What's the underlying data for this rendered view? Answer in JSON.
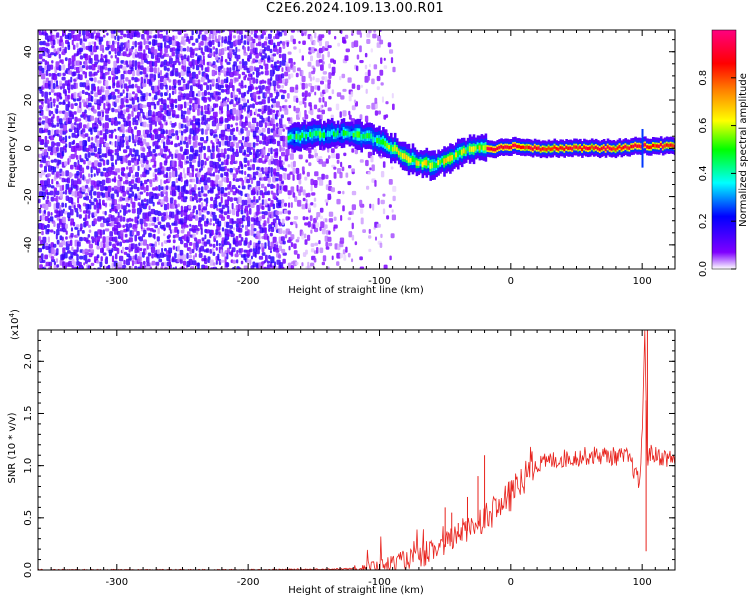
{
  "title": "C2E6.2024.109.13.00.R01",
  "chart_data": [
    {
      "type": "heatmap",
      "xlabel": "Height of straight line (km)",
      "ylabel": "Frequency (Hz)",
      "xlim": [
        -360,
        125
      ],
      "ylim": [
        -50,
        49
      ],
      "x_ticks": [
        -300,
        -200,
        -100,
        0,
        100
      ],
      "y_ticks": [
        -40,
        -20,
        0,
        20,
        40
      ],
      "colorbar": {
        "label": "Normalized spectral amplitude",
        "range": [
          0.0,
          1.0
        ],
        "ticks": [
          0.0,
          0.2,
          0.4,
          0.6,
          0.8
        ],
        "tick_labels": [
          "0.0",
          "0.2",
          "0.4",
          "0.6",
          "0.8"
        ],
        "colormap": [
          "#ffffff",
          "#7f00ff",
          "#0000ff",
          "#00ffff",
          "#00ff00",
          "#ffff00",
          "#ff7f00",
          "#ff0000",
          "#ff00ff"
        ]
      },
      "doppler_track": {
        "x": [
          -170,
          -150,
          -130,
          -110,
          -100,
          -90,
          -80,
          -70,
          -60,
          -50,
          -40,
          -30,
          -20,
          -10,
          0,
          20,
          50,
          80,
          100,
          125
        ],
        "y": [
          4,
          6,
          6,
          5,
          3,
          0,
          -4,
          -6,
          -7,
          -5,
          -2,
          0,
          0,
          0,
          1,
          0,
          0,
          0,
          1,
          1
        ]
      }
    },
    {
      "type": "line",
      "xlabel": "Height of straight line (km)",
      "ylabel": "SNR (10 * v/v)",
      "y_multiplier": "(x10",
      "y_multiplier_exp": "4",
      "y_multiplier_close": ")",
      "xlim": [
        -360,
        125
      ],
      "ylim": [
        0,
        2.3
      ],
      "x_ticks": [
        -300,
        -200,
        -100,
        0,
        100
      ],
      "y_ticks": [
        0.0,
        0.5,
        1.0,
        1.5,
        2.0
      ],
      "y_tick_labels": [
        "0.0",
        "0.5",
        "1.0",
        "1.5",
        "2.0"
      ],
      "line_color": "#e8231d",
      "series": [
        {
          "x": [
            -360,
            -300,
            -200,
            -120,
            -100,
            -90,
            -80,
            -70,
            -60,
            -50,
            -40,
            -30,
            -20,
            -10,
            0,
            10,
            20,
            30,
            40,
            50,
            60,
            70,
            80,
            90,
            98,
            100,
            102,
            104,
            106,
            110,
            120,
            125
          ],
          "values": [
            0.0,
            0.0,
            0.0,
            0.01,
            0.02,
            0.05,
            0.08,
            0.1,
            0.15,
            0.22,
            0.32,
            0.4,
            0.48,
            0.55,
            0.68,
            0.85,
            0.98,
            1.03,
            1.05,
            1.06,
            1.08,
            1.08,
            1.07,
            1.06,
            0.8,
            1.3,
            2.2,
            1.05,
            1.1,
            1.08,
            1.05,
            1.05
          ],
          "spikes": {
            "x": [
              -50,
              -45,
              -40,
              -33,
              -25,
              -20,
              103,
              104
            ],
            "values": [
              0.6,
              0.55,
              0.45,
              0.7,
              0.9,
              1.1,
              0.18,
              2.3
            ]
          }
        }
      ]
    }
  ]
}
